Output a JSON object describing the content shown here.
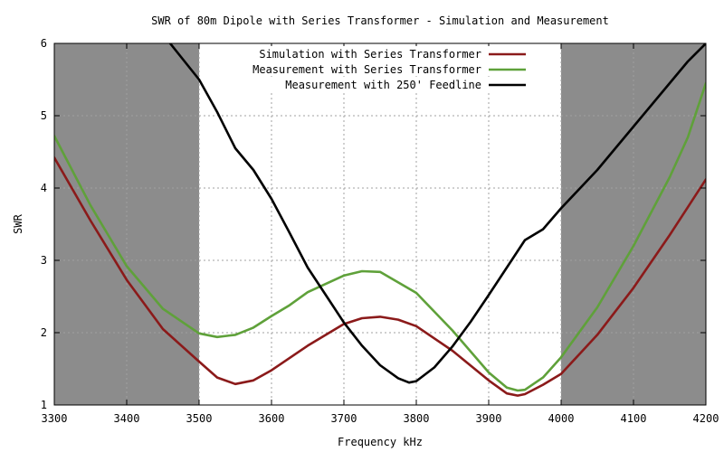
{
  "chart_data": {
    "type": "line",
    "title": "SWR of 80m Dipole with Series Transformer - Simulation and Measurement",
    "xlabel": "Frequency kHz",
    "ylabel": "SWR",
    "xlim": [
      3300,
      4200
    ],
    "ylim": [
      1,
      6
    ],
    "xticks": [
      3300,
      3400,
      3500,
      3600,
      3700,
      3800,
      3900,
      4000,
      4100,
      4200
    ],
    "yticks": [
      1,
      2,
      3,
      4,
      5,
      6
    ],
    "grid": true,
    "legend": "top-right",
    "shaded_ranges": [
      {
        "x": [
          3300,
          3500
        ],
        "color": "#8c8c8c"
      },
      {
        "x": [
          4000,
          4200
        ],
        "color": "#8c8c8c"
      }
    ],
    "series": [
      {
        "name": "Simulation with Series Transformer",
        "color": "#8b1a1a",
        "x": [
          3300,
          3350,
          3400,
          3450,
          3500,
          3525,
          3550,
          3575,
          3600,
          3650,
          3700,
          3725,
          3750,
          3775,
          3800,
          3850,
          3900,
          3925,
          3940,
          3950,
          3975,
          4000,
          4050,
          4100,
          4150,
          4200
        ],
        "y": [
          4.42,
          3.55,
          2.73,
          2.05,
          1.6,
          1.38,
          1.29,
          1.34,
          1.48,
          1.82,
          2.12,
          2.2,
          2.22,
          2.18,
          2.09,
          1.75,
          1.34,
          1.16,
          1.13,
          1.15,
          1.28,
          1.43,
          1.97,
          2.62,
          3.35,
          4.12
        ]
      },
      {
        "name": "Measurement with Series Transformer",
        "color": "#5fa13a",
        "x": [
          3300,
          3350,
          3400,
          3450,
          3500,
          3525,
          3550,
          3575,
          3600,
          3625,
          3650,
          3700,
          3725,
          3750,
          3800,
          3850,
          3900,
          3925,
          3940,
          3950,
          3975,
          4000,
          4050,
          4100,
          4150,
          4175,
          4200
        ],
        "y": [
          4.72,
          3.76,
          2.92,
          2.33,
          1.99,
          1.94,
          1.97,
          2.07,
          2.23,
          2.38,
          2.56,
          2.79,
          2.85,
          2.84,
          2.55,
          2.03,
          1.45,
          1.24,
          1.2,
          1.21,
          1.38,
          1.66,
          2.35,
          3.2,
          4.15,
          4.7,
          5.45
        ]
      },
      {
        "name": "Measurement with 250' Feedline",
        "color": "#000000",
        "x": [
          3460,
          3500,
          3525,
          3550,
          3575,
          3600,
          3625,
          3650,
          3675,
          3700,
          3725,
          3750,
          3775,
          3790,
          3800,
          3825,
          3850,
          3875,
          3900,
          3925,
          3950,
          3975,
          4000,
          4050,
          4100,
          4150,
          4175,
          4200
        ],
        "y": [
          6.0,
          5.5,
          5.05,
          4.55,
          4.25,
          3.85,
          3.38,
          2.9,
          2.52,
          2.14,
          1.82,
          1.55,
          1.37,
          1.31,
          1.33,
          1.52,
          1.81,
          2.15,
          2.52,
          2.9,
          3.28,
          3.43,
          3.72,
          4.25,
          4.85,
          5.45,
          5.75,
          6.0
        ]
      }
    ]
  }
}
